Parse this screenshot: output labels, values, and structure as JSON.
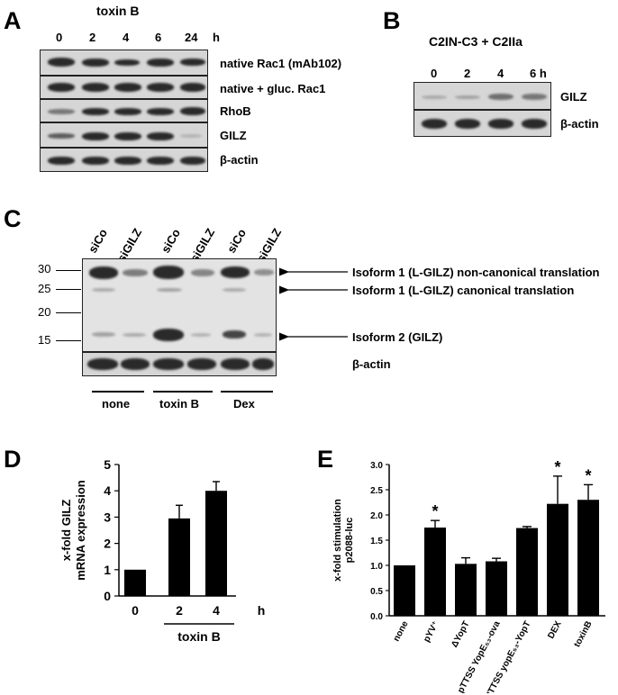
{
  "panelA": {
    "letter": "A",
    "title": "toxin B",
    "timepoints": [
      "0",
      "2",
      "4",
      "6",
      "24"
    ],
    "unit": "h",
    "rows": [
      "native Rac1 (mAb102)",
      "native + gluc. Rac1",
      "RhoB",
      "GILZ",
      "β-actin"
    ]
  },
  "panelB": {
    "letter": "B",
    "title": "C2IN-C3 + C2IIa",
    "timepoints": [
      "0",
      "2",
      "4",
      "6 h"
    ],
    "rows": [
      "GILZ",
      "β-actin"
    ]
  },
  "panelC": {
    "letter": "C",
    "lanes": [
      "siCo",
      "siGILZ",
      "siCo",
      "siGILZ",
      "siCo",
      "siGILZ"
    ],
    "markers": [
      "30",
      "25",
      "20",
      "15"
    ],
    "annotations": [
      "Isoform 1 (L-GILZ) non-canonical translation",
      "Isoform 1 (L-GILZ) canonical translation",
      "Isoform 2 (GILZ)"
    ],
    "actin_label": "β-actin",
    "groups": [
      "none",
      "toxin B",
      "Dex"
    ]
  },
  "panelD": {
    "letter": "D",
    "chart_data": {
      "type": "bar",
      "categories": [
        "0",
        "2",
        "4"
      ],
      "values": [
        1.0,
        2.95,
        4.0
      ],
      "errors": [
        0,
        0.5,
        0.35
      ],
      "ylabel": "x-fold GILZ mRNA expression",
      "ylim": [
        0,
        5
      ],
      "yticks": [
        "0",
        "1",
        "2",
        "3",
        "4",
        "5"
      ],
      "unit": "h",
      "group_label": "toxin B"
    }
  },
  "panelE": {
    "letter": "E",
    "chart_data": {
      "type": "bar",
      "categories": [
        "none",
        "pYV⁺",
        "ΔYopT",
        "pTTSS YopE₅₃-ova",
        "PTTSS yopE₅₃-YopT",
        "DEX",
        "toxinB"
      ],
      "values": [
        1.0,
        1.75,
        1.03,
        1.08,
        1.74,
        2.22,
        2.3
      ],
      "errors": [
        0,
        0.14,
        0.12,
        0.06,
        0.03,
        0.55,
        0.3
      ],
      "significant": [
        false,
        true,
        false,
        false,
        false,
        true,
        true
      ],
      "ylabel": "x-fold stimulation p2088-luc",
      "ylim": [
        0,
        3.0
      ],
      "yticks": [
        "0.0",
        "0.5",
        "1.0",
        "1.5",
        "2.0",
        "2.5",
        "3.0"
      ],
      "marker": "*"
    }
  }
}
